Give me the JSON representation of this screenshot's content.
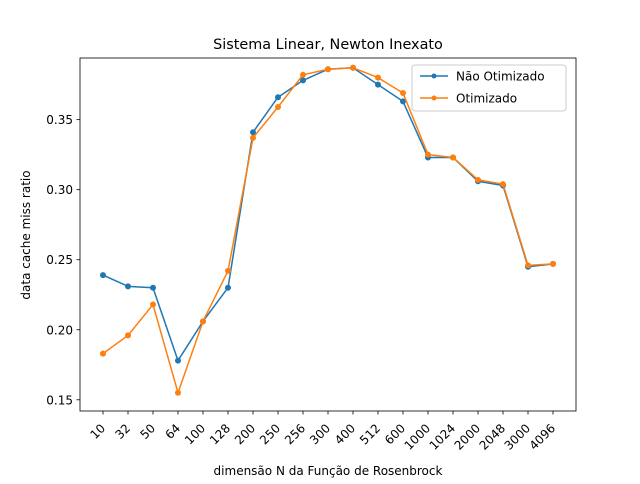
{
  "chart_data": {
    "type": "line",
    "title": "Sistema Linear, Newton Inexato",
    "xlabel": "dimensão N da Função de Rosenbrock",
    "ylabel": "data cache miss ratio",
    "categories": [
      "10",
      "32",
      "50",
      "64",
      "100",
      "128",
      "200",
      "250",
      "256",
      "300",
      "400",
      "512",
      "600",
      "1000",
      "1024",
      "2000",
      "2048",
      "3000",
      "4096"
    ],
    "ylim": [
      0.142,
      0.394
    ],
    "yticks": [
      0.15,
      0.2,
      0.25,
      0.3,
      0.35
    ],
    "ytick_labels": [
      "0.15",
      "0.20",
      "0.25",
      "0.30",
      "0.35"
    ],
    "legend_position": "top-right",
    "grid": false,
    "series": [
      {
        "name": "Não Otimizado",
        "color": "#1f77b4",
        "values": [
          0.239,
          0.231,
          0.23,
          0.178,
          0.206,
          0.23,
          0.341,
          0.366,
          0.378,
          0.386,
          0.387,
          0.375,
          0.363,
          0.323,
          0.323,
          0.306,
          0.303,
          0.245,
          0.247
        ]
      },
      {
        "name": "Otimizado",
        "color": "#ff7f0e",
        "values": [
          0.183,
          0.196,
          0.218,
          0.155,
          0.206,
          0.242,
          0.337,
          0.359,
          0.382,
          0.386,
          0.387,
          0.38,
          0.369,
          0.325,
          0.323,
          0.307,
          0.304,
          0.246,
          0.247
        ]
      }
    ]
  }
}
